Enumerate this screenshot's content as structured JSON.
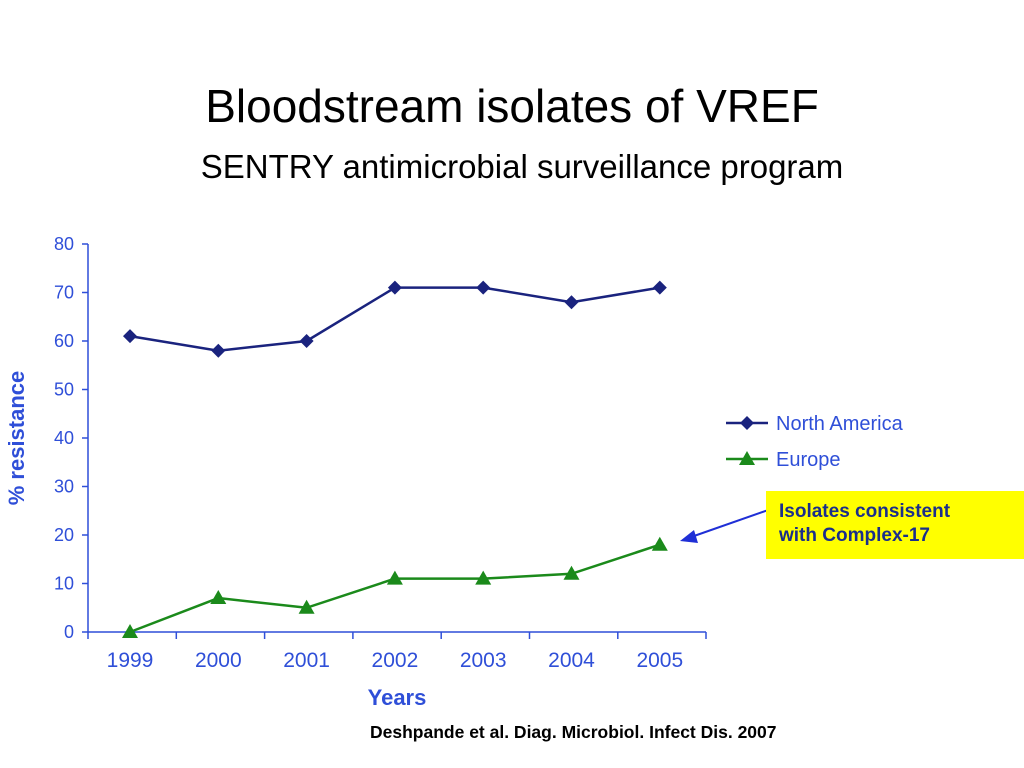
{
  "slide": {
    "title": "Bloodstream isolates of VREF",
    "subtitle": "SENTRY antimicrobial surveillance program",
    "citation": "Deshpande et al. Diag. Microbiol. Infect Dis. 2007"
  },
  "callout": {
    "line1": "Isolates consistent",
    "line2": "with Complex-17",
    "background": "#ffff00",
    "text_color": "#1a2e8c",
    "arrow_color": "#1f2fd6"
  },
  "chart_data": {
    "type": "line",
    "x": [
      "1999",
      "2000",
      "2001",
      "2002",
      "2003",
      "2004",
      "2005"
    ],
    "series": [
      {
        "name": "North America",
        "values": [
          61,
          58,
          60,
          71,
          71,
          68,
          71
        ],
        "color": "#1a237e",
        "marker": "diamond"
      },
      {
        "name": "Europe",
        "values": [
          0,
          7,
          5,
          11,
          11,
          12,
          18
        ],
        "color": "#1b8a1b",
        "marker": "triangle"
      }
    ],
    "xlabel": "Years",
    "ylabel": "% resistance",
    "ylim": [
      0,
      80
    ],
    "yticks": [
      "0",
      "10",
      "20",
      "30",
      "40",
      "50",
      "60",
      "70",
      "80"
    ],
    "axis_color": "#2f4fd8",
    "grid": false,
    "legend_position": "right"
  }
}
